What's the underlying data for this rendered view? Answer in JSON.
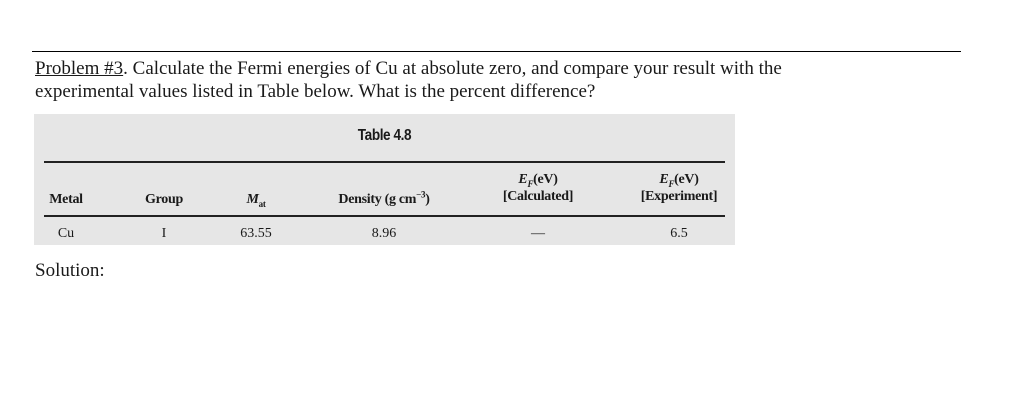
{
  "problem": {
    "label": "Problem #3",
    "text_line1": ". Calculate the Fermi energies of Cu at absolute zero, and compare your result with the",
    "text_line2": "experimental values listed in Table below. What is the percent difference?"
  },
  "table": {
    "title": "Table 4.8",
    "headers": {
      "metal": "Metal",
      "group": "Group",
      "mat_symbol": "M",
      "mat_sub": "at",
      "density_prefix": "Density (g cm",
      "density_sup": "−3",
      "density_suffix": ")",
      "calc_symbol": "E",
      "calc_sub": "F",
      "calc_unit": "(eV)",
      "calc_note": "[Calculated]",
      "exp_symbol": "E",
      "exp_sub": "F",
      "exp_unit": "(eV)",
      "exp_note": "[Experiment]"
    },
    "rows": [
      {
        "metal": "Cu",
        "group": "I",
        "mat": "63.55",
        "density": "8.96",
        "ef_calculated": "—",
        "ef_experiment": "6.5"
      }
    ],
    "background_color": "#e6e6e6"
  },
  "solution": {
    "label": "Solution:"
  }
}
